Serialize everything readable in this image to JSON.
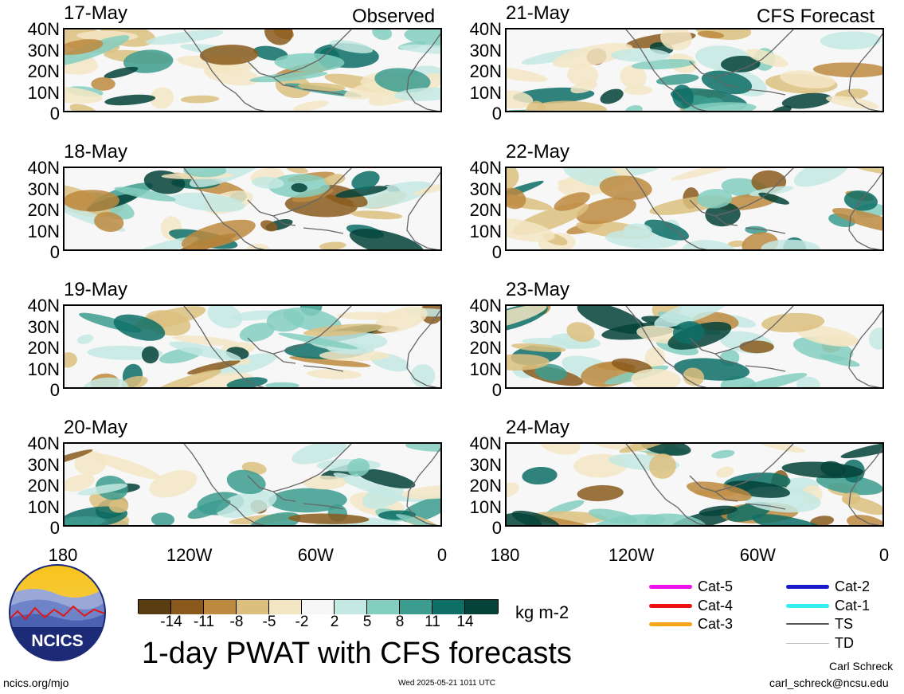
{
  "header": {
    "observed_label": "Observed",
    "forecast_label": "CFS Forecast"
  },
  "panels": [
    {
      "date": "17-May",
      "column": "observed",
      "row": 0
    },
    {
      "date": "18-May",
      "column": "observed",
      "row": 1
    },
    {
      "date": "19-May",
      "column": "observed",
      "row": 2
    },
    {
      "date": "20-May",
      "column": "observed",
      "row": 3
    },
    {
      "date": "21-May",
      "column": "forecast",
      "row": 0
    },
    {
      "date": "22-May",
      "column": "forecast",
      "row": 1
    },
    {
      "date": "23-May",
      "column": "forecast",
      "row": 2
    },
    {
      "date": "24-May",
      "column": "forecast",
      "row": 3
    }
  ],
  "axes": {
    "y_labels": [
      "40N",
      "30N",
      "20N",
      "10N",
      "0"
    ],
    "x_labels": [
      "180",
      "120W",
      "60W",
      "0"
    ]
  },
  "colorbar": {
    "colors": [
      "#5a3d10",
      "#8a5a1c",
      "#bd8a3f",
      "#dcbf7f",
      "#f3e6c4",
      "#f7f7f7",
      "#c4e9e3",
      "#84cec0",
      "#3c9c8f",
      "#0d6f66",
      "#04423a"
    ],
    "ticks": [
      "-14",
      "-11",
      "-8",
      "-5",
      "-2",
      "2",
      "5",
      "8",
      "11",
      "14"
    ],
    "units": "kg m-2"
  },
  "legend": [
    {
      "label": "Cat-5",
      "color": "#ee11ee"
    },
    {
      "label": "Cat-4",
      "color": "#ee1111"
    },
    {
      "label": "Cat-3",
      "color": "#f7a51a"
    },
    {
      "label": "Cat-2",
      "color": "#1a1acc"
    },
    {
      "label": "Cat-1",
      "color": "#33eeee"
    },
    {
      "label": "TS",
      "color": "#555555"
    },
    {
      "label": "TD",
      "color": "#bbbbbb"
    }
  ],
  "logo": {
    "text": "NCICS"
  },
  "footer": {
    "title": "1-day PWAT with CFS forecasts",
    "website": "ncics.org/mjo",
    "timestamp": "Wed 2025-05-21 1011 UTC",
    "author": "Carl Schreck",
    "email": "carl_schreck@ncsu.edu"
  }
}
